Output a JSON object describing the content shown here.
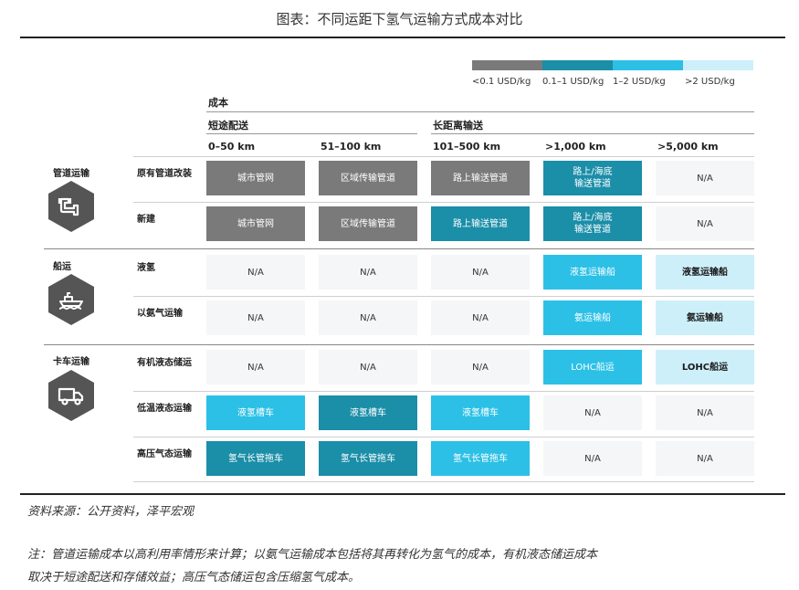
{
  "title": "图表：不同运距下氢气运输方式成本对比",
  "colors": {
    "lt_0_1": "#7a7a7a",
    "0_1_to_1": "#1b8ea8",
    "1_to_2": "#2cc0e6",
    "gt_2": "#cdeffa",
    "na": "#f5f6f7",
    "icon": "#555555"
  },
  "chart_data": {
    "type": "table",
    "legend": [
      {
        "label": "<0.1 USD/kg",
        "key": "lt_0_1"
      },
      {
        "label": "0.1–1 USD/kg",
        "key": "0_1_to_1"
      },
      {
        "label": "1–2 USD/kg",
        "key": "1_to_2"
      },
      {
        "label": ">2 USD/kg",
        "key": "gt_2"
      }
    ],
    "header": {
      "metric": "成本",
      "group_short": "短途配送",
      "group_long": "长距离输送",
      "distances": [
        "0–50 km",
        "51–100 km",
        "101–500 km",
        ">1,000 km",
        ">5,000 km"
      ]
    },
    "modes": [
      {
        "name": "管道运输",
        "icon": "pipeline-icon"
      },
      {
        "name": "船运",
        "icon": "ship-icon"
      },
      {
        "name": "卡车运输",
        "icon": "truck-icon"
      }
    ],
    "rows": [
      {
        "mode": "管道运输",
        "route": "原有管道改装",
        "cells": [
          {
            "text": "城市管网",
            "cost": "lt_0_1"
          },
          {
            "text": "区域传输管道",
            "cost": "lt_0_1"
          },
          {
            "text": "路上输送管道",
            "cost": "lt_0_1"
          },
          {
            "text": "路上/海底\n输送管道",
            "cost": "0_1_to_1"
          },
          {
            "text": "N/A",
            "cost": "na"
          }
        ]
      },
      {
        "mode": "管道运输",
        "route": "新建",
        "cells": [
          {
            "text": "城市管网",
            "cost": "lt_0_1"
          },
          {
            "text": "区域传输管道",
            "cost": "lt_0_1"
          },
          {
            "text": "路上输送管道",
            "cost": "0_1_to_1"
          },
          {
            "text": "路上/海底\n输送管道",
            "cost": "0_1_to_1"
          },
          {
            "text": "N/A",
            "cost": "na"
          }
        ]
      },
      {
        "mode": "船运",
        "route": "液氢",
        "cells": [
          {
            "text": "N/A",
            "cost": "na"
          },
          {
            "text": "N/A",
            "cost": "na"
          },
          {
            "text": "N/A",
            "cost": "na"
          },
          {
            "text": "液氢运输船",
            "cost": "1_to_2"
          },
          {
            "text": "液氢运输船",
            "cost": "gt_2"
          }
        ]
      },
      {
        "mode": "船运",
        "route": "以氨气运输",
        "cells": [
          {
            "text": "N/A",
            "cost": "na"
          },
          {
            "text": "N/A",
            "cost": "na"
          },
          {
            "text": "N/A",
            "cost": "na"
          },
          {
            "text": "氨运输船",
            "cost": "1_to_2"
          },
          {
            "text": "氨运输船",
            "cost": "gt_2"
          }
        ]
      },
      {
        "mode": "卡车运输",
        "route": "有机液态储运",
        "cells": [
          {
            "text": "N/A",
            "cost": "na"
          },
          {
            "text": "N/A",
            "cost": "na"
          },
          {
            "text": "N/A",
            "cost": "na"
          },
          {
            "text": "LOHC船运",
            "cost": "1_to_2"
          },
          {
            "text": "LOHC船运",
            "cost": "gt_2"
          }
        ]
      },
      {
        "mode": "卡车运输",
        "route": "低温液态运输",
        "cells": [
          {
            "text": "液氢槽车",
            "cost": "1_to_2"
          },
          {
            "text": "液氢槽车",
            "cost": "0_1_to_1"
          },
          {
            "text": "液氢槽车",
            "cost": "1_to_2"
          },
          {
            "text": "N/A",
            "cost": "na"
          },
          {
            "text": "N/A",
            "cost": "na"
          }
        ]
      },
      {
        "mode": "卡车运输",
        "route": "高压气态运输",
        "cells": [
          {
            "text": "氢气长管拖车",
            "cost": "0_1_to_1"
          },
          {
            "text": "氢气长管拖车",
            "cost": "0_1_to_1"
          },
          {
            "text": "氢气长管拖车",
            "cost": "1_to_2"
          },
          {
            "text": "N/A",
            "cost": "na"
          },
          {
            "text": "N/A",
            "cost": "na"
          }
        ]
      }
    ]
  },
  "source": "资料来源：公开资料，泽平宏观",
  "note_lines": [
    "注：管道运输成本以高利用率情形来计算；以氨气运输成本包括将其再转化为氢气的成本，有机液态储运成本",
    "取决于短途配送和存储效益；高压气态储运包含压缩氢气成本。"
  ]
}
